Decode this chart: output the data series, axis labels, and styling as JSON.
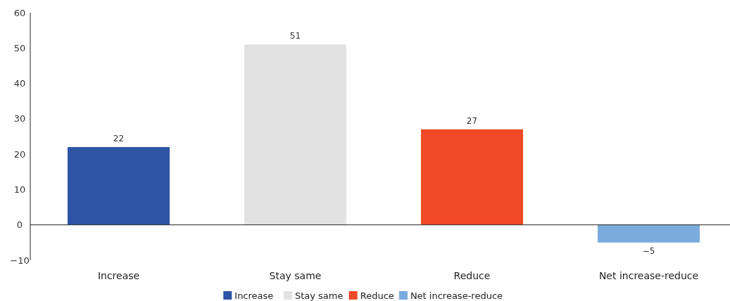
{
  "chart_data": {
    "type": "bar",
    "categories": [
      "Increase",
      "Stay same",
      "Reduce",
      "Net increase-reduce"
    ],
    "series": [
      {
        "name": "Increase",
        "color": "#2d55a5",
        "values": [
          22,
          null,
          null,
          null
        ]
      },
      {
        "name": "Stay same",
        "color": "#e2e2e2",
        "values": [
          null,
          51,
          null,
          null
        ]
      },
      {
        "name": "Reduce",
        "color": "#f04a26",
        "values": [
          null,
          null,
          27,
          null
        ]
      },
      {
        "name": "Net increase-reduce",
        "color": "#7aabdc",
        "values": [
          null,
          null,
          null,
          -5
        ]
      }
    ],
    "ylim": [
      -10,
      60
    ],
    "yticks": [
      -10,
      0,
      10,
      20,
      30,
      40,
      50,
      60
    ],
    "data_labels": true,
    "legend": "bottom"
  }
}
